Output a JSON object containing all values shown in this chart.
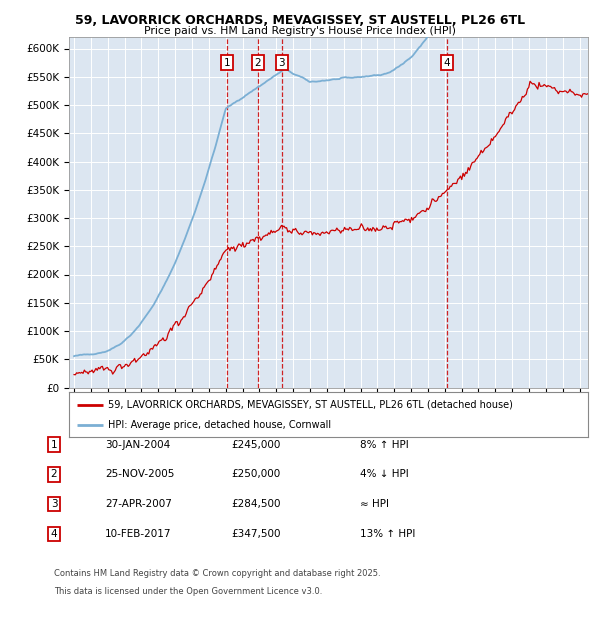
{
  "title": "59, LAVORRICK ORCHARDS, MEVAGISSEY, ST AUSTELL, PL26 6TL",
  "subtitle": "Price paid vs. HM Land Registry's House Price Index (HPI)",
  "plot_bg_color": "#dce6f1",
  "ylim": [
    0,
    620000
  ],
  "yticks": [
    0,
    50000,
    100000,
    150000,
    200000,
    250000,
    300000,
    350000,
    400000,
    450000,
    500000,
    550000,
    600000
  ],
  "legend_label_red": "59, LAVORRICK ORCHARDS, MEVAGISSEY, ST AUSTELL, PL26 6TL (detached house)",
  "legend_label_blue": "HPI: Average price, detached house, Cornwall",
  "footer1": "Contains HM Land Registry data © Crown copyright and database right 2025.",
  "footer2": "This data is licensed under the Open Government Licence v3.0.",
  "transactions": [
    {
      "num": 1,
      "date": "30-JAN-2004",
      "price": "£245,000",
      "relation": "8% ↑ HPI",
      "year": 2004.08
    },
    {
      "num": 2,
      "date": "25-NOV-2005",
      "price": "£250,000",
      "relation": "4% ↓ HPI",
      "year": 2005.9
    },
    {
      "num": 3,
      "date": "27-APR-2007",
      "price": "£284,500",
      "relation": "≈ HPI",
      "year": 2007.32
    },
    {
      "num": 4,
      "date": "10-FEB-2017",
      "price": "£347,500",
      "relation": "13% ↑ HPI",
      "year": 2017.12
    }
  ],
  "red_color": "#cc0000",
  "blue_color": "#7bafd4",
  "dashed_color": "#cc0000",
  "marker_box_color": "#cc0000",
  "xmin": 1995,
  "xmax": 2025.5
}
